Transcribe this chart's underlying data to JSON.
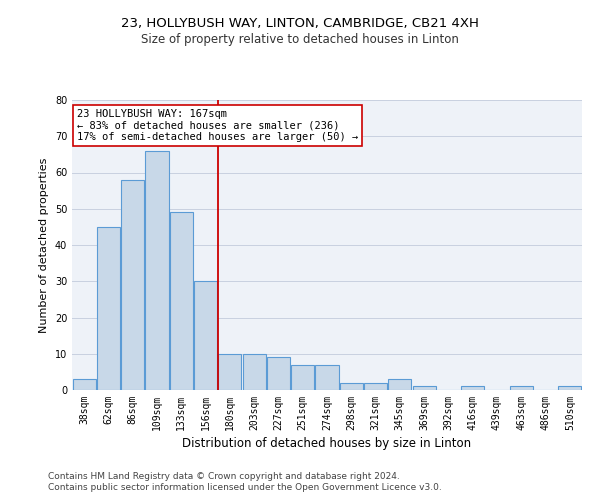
{
  "title1": "23, HOLLYBUSH WAY, LINTON, CAMBRIDGE, CB21 4XH",
  "title2": "Size of property relative to detached houses in Linton",
  "xlabel": "Distribution of detached houses by size in Linton",
  "ylabel": "Number of detached properties",
  "categories": [
    "38sqm",
    "62sqm",
    "86sqm",
    "109sqm",
    "133sqm",
    "156sqm",
    "180sqm",
    "203sqm",
    "227sqm",
    "251sqm",
    "274sqm",
    "298sqm",
    "321sqm",
    "345sqm",
    "369sqm",
    "392sqm",
    "416sqm",
    "439sqm",
    "463sqm",
    "486sqm",
    "510sqm"
  ],
  "bar_heights": [
    3,
    45,
    58,
    66,
    49,
    30,
    10,
    10,
    9,
    7,
    7,
    2,
    2,
    3,
    1,
    0,
    1,
    0,
    1,
    0,
    1
  ],
  "bar_color": "#c8d8e8",
  "bar_edge_color": "#5b9bd5",
  "bar_edge_width": 0.8,
  "redline_index": 6,
  "redline_color": "#cc0000",
  "annotation_line1": "23 HOLLYBUSH WAY: 167sqm",
  "annotation_line2": "← 83% of detached houses are smaller (236)",
  "annotation_line3": "17% of semi-detached houses are larger (50) →",
  "annotation_box_color": "#ffffff",
  "annotation_box_edge": "#cc0000",
  "ylim": [
    0,
    80
  ],
  "yticks": [
    0,
    10,
    20,
    30,
    40,
    50,
    60,
    70,
    80
  ],
  "grid_color": "#c8d0e0",
  "bg_color": "#eef2f8",
  "footer1": "Contains HM Land Registry data © Crown copyright and database right 2024.",
  "footer2": "Contains public sector information licensed under the Open Government Licence v3.0.",
  "title1_fontsize": 9.5,
  "title2_fontsize": 8.5,
  "xlabel_fontsize": 8.5,
  "ylabel_fontsize": 8,
  "tick_fontsize": 7,
  "annotation_fontsize": 7.5,
  "footer_fontsize": 6.5
}
